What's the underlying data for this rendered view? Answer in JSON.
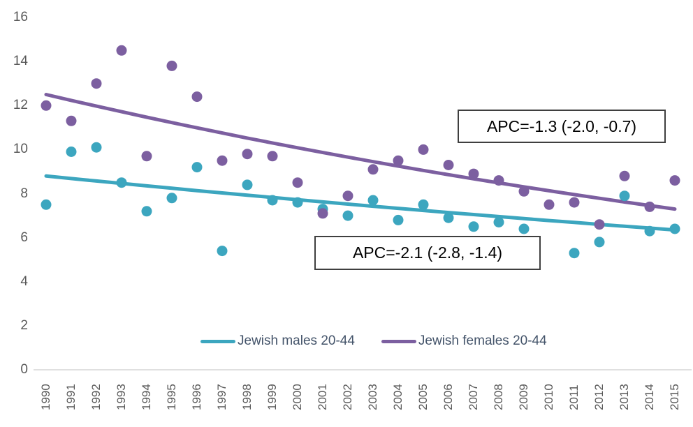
{
  "chart_data": {
    "type": "scatter",
    "title": "",
    "xlabel": "",
    "ylabel": "",
    "x": [
      1990,
      1991,
      1992,
      1993,
      1994,
      1995,
      1996,
      1997,
      1998,
      1999,
      2000,
      2001,
      2002,
      2003,
      2004,
      2005,
      2006,
      2007,
      2008,
      2009,
      2010,
      2011,
      2012,
      2013,
      2014,
      2015
    ],
    "ylim": [
      0,
      16
    ],
    "y_ticks": [
      0,
      2,
      4,
      6,
      8,
      10,
      12,
      14,
      16
    ],
    "grid": "off",
    "legend_position": "bottom",
    "axis_line_color": "#d6d6d6",
    "tick_label_color": "#595959",
    "legend_text_color": "#44546a",
    "series": [
      {
        "name": "Jewish males 20-44",
        "color": "#3ca6bf",
        "values": [
          7.5,
          9.9,
          10.1,
          8.5,
          7.2,
          7.8,
          9.2,
          5.4,
          8.4,
          7.7,
          7.6,
          7.3,
          7.0,
          7.7,
          6.8,
          7.5,
          6.9,
          6.5,
          6.7,
          6.4,
          null,
          5.3,
          5.8,
          7.9,
          6.3,
          6.4
        ],
        "trend": {
          "start": 8.8,
          "end": 6.35,
          "interpolation": "exponential"
        },
        "apc": "APC=-1.3 (-2.0, -0.7)"
      },
      {
        "name": "Jewish females 20-44",
        "color": "#7c5fa0",
        "values": [
          12.0,
          11.3,
          13.0,
          14.5,
          9.7,
          13.8,
          12.4,
          9.5,
          9.8,
          9.7,
          8.5,
          7.1,
          7.9,
          9.1,
          9.5,
          10.0,
          9.3,
          8.9,
          8.6,
          8.1,
          7.5,
          7.6,
          6.6,
          8.8,
          7.4,
          8.6
        ],
        "trend": {
          "start": 12.5,
          "end": 7.3,
          "interpolation": "exponential"
        },
        "apc": "APC=-2.1 (-2.8, -1.4)"
      }
    ],
    "annotations": [
      {
        "text": "APC=-1.3 (-2.0, -0.7)"
      },
      {
        "text": "APC=-2.1 (-2.8, -1.4)"
      }
    ]
  }
}
